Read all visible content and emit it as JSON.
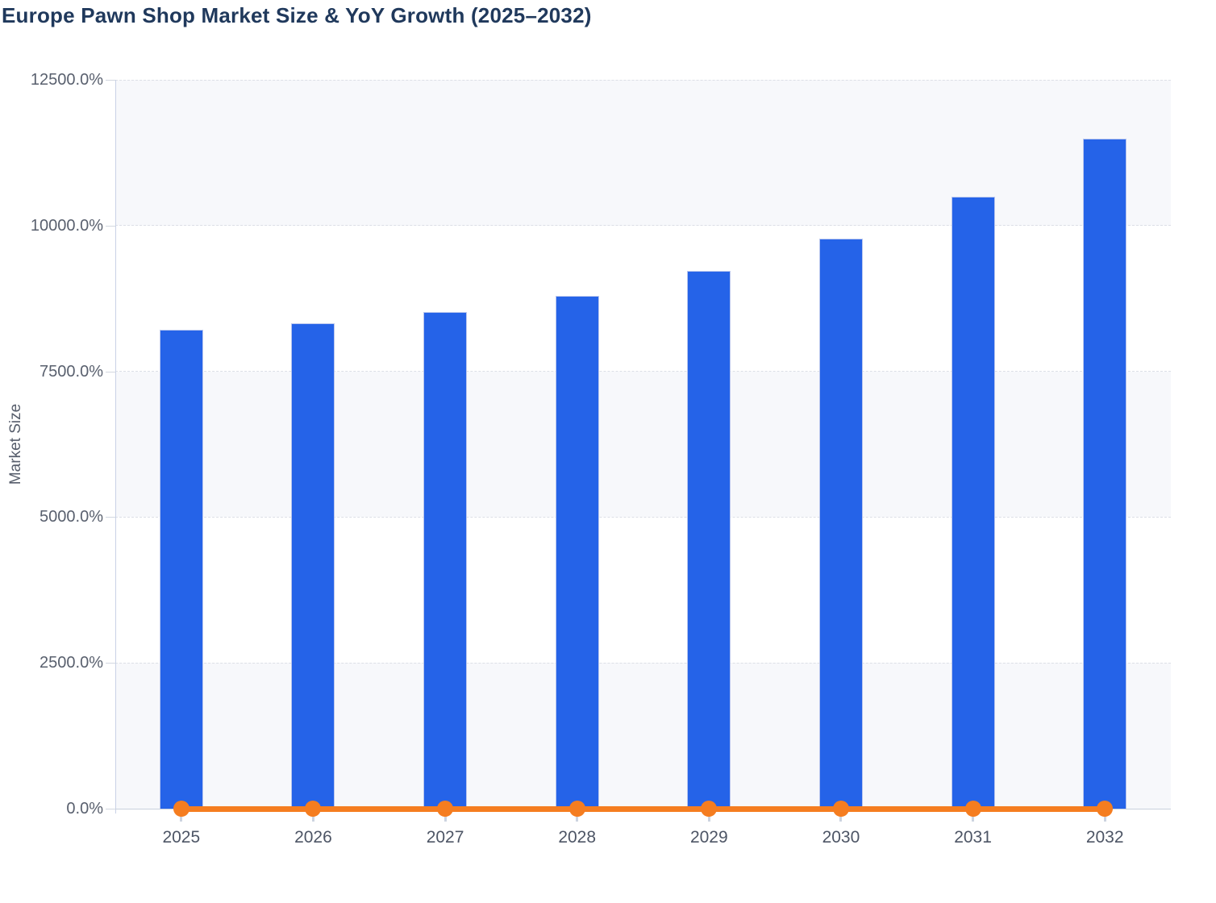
{
  "title": "Europe Pawn Shop Market Size & YoY Growth (2025–2032)",
  "y_axis": {
    "title": "Market Size",
    "tick_labels": [
      "0.0%",
      "2500.0%",
      "5000.0%",
      "7500.0%",
      "10000.0%",
      "12500.0%"
    ]
  },
  "x_axis": {
    "tick_labels": [
      "2025",
      "2026",
      "2027",
      "2028",
      "2029",
      "2030",
      "2031",
      "2032"
    ]
  },
  "colors": {
    "bar_fill": "#2563e8",
    "bar_border": "#b9c6ee",
    "line": "#f57d20",
    "title_text": "#20395c",
    "band": "#f7f8fb",
    "grid": "#dcdfe6",
    "axis_line": "#c9d2e6",
    "y_label_text": "#59606e",
    "x_label_text": "#4d5565"
  },
  "chart_data": {
    "type": "bar",
    "title": "Europe Pawn Shop Market Size & YoY Growth (2025–2032)",
    "categories": [
      "2025",
      "2026",
      "2027",
      "2028",
      "2029",
      "2030",
      "2031",
      "2032"
    ],
    "series": [
      {
        "name": "Market Size",
        "type": "bar",
        "color": "#2563e8",
        "values": [
          8210,
          8320,
          8520,
          8800,
          9220,
          9780,
          10500,
          11490
        ]
      },
      {
        "name": "YoY Growth",
        "type": "line",
        "color": "#f57d20",
        "values": [
          0,
          0,
          0,
          0,
          0,
          0,
          0,
          0
        ],
        "note": "rendered flat at 0.0% on this axis scale"
      }
    ],
    "xlabel": "",
    "ylabel": "Market Size",
    "ylim": [
      0,
      12500
    ],
    "yticks": [
      0,
      2500,
      5000,
      7500,
      10000,
      12500
    ],
    "ytick_suffix": "%",
    "grid": "dashed horizontal gridlines with alternating background bands",
    "legend": "none"
  }
}
